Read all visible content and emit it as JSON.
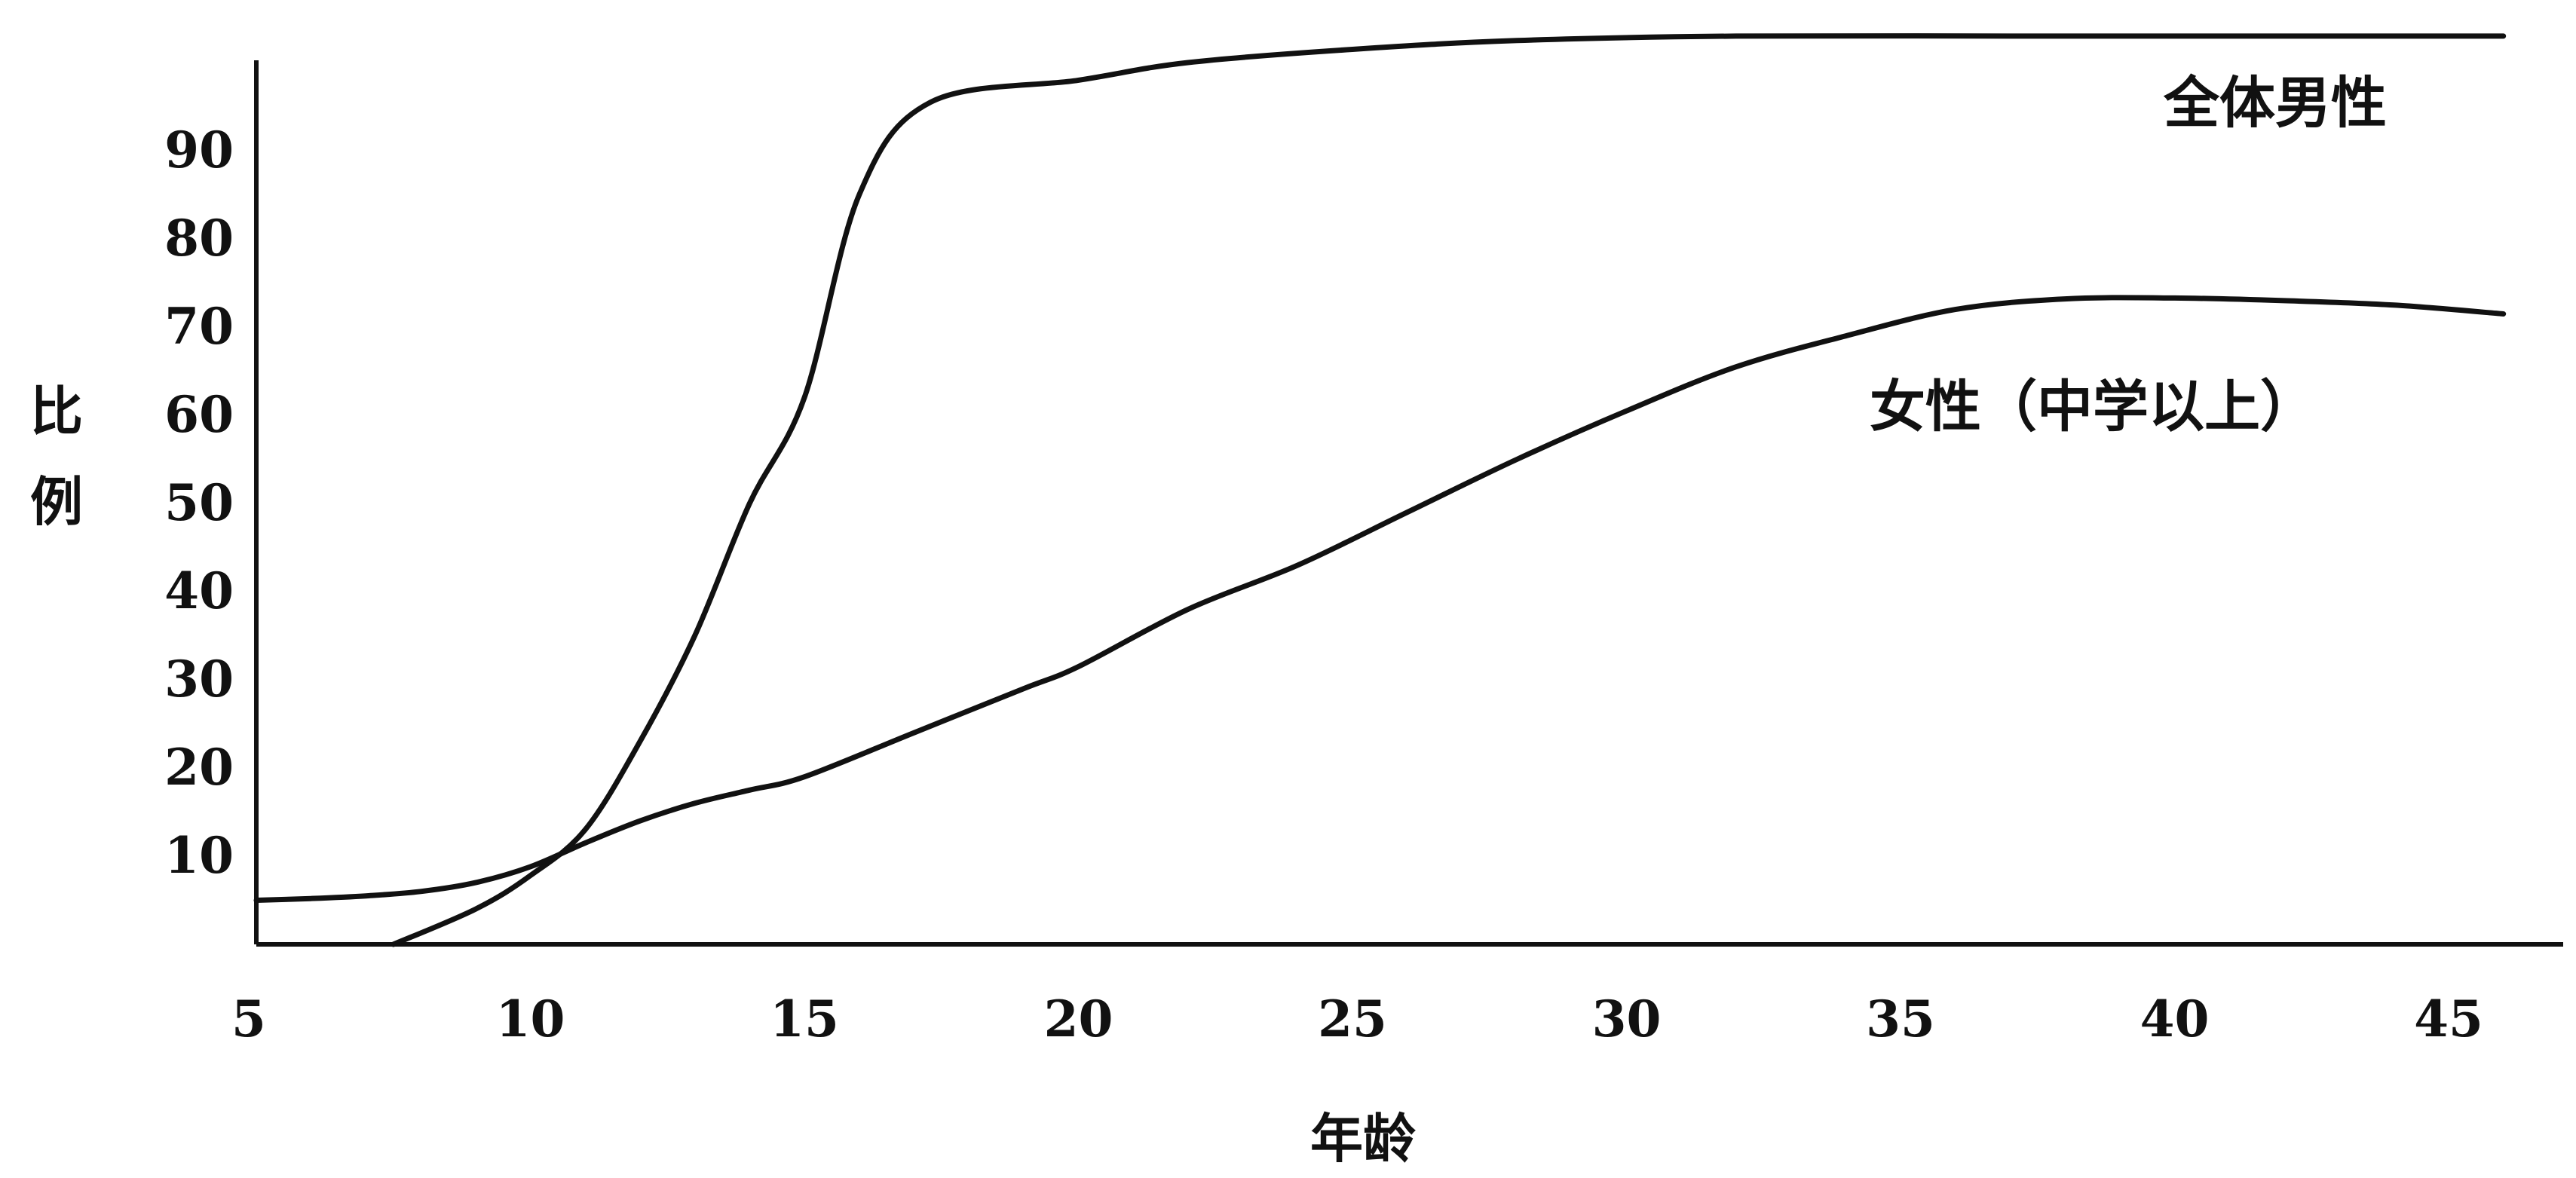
{
  "chart_data": {
    "type": "line",
    "title": "",
    "xlabel": "年龄",
    "ylabel": "比例",
    "xlim": [
      5,
      46
    ],
    "ylim": [
      0,
      100
    ],
    "x_ticks": [
      5,
      10,
      15,
      20,
      25,
      30,
      35,
      40,
      45
    ],
    "y_ticks": [
      10,
      20,
      30,
      40,
      50,
      60,
      70,
      80,
      90
    ],
    "grid": false,
    "legend": "none",
    "series": [
      {
        "name": "全体男性",
        "label_position": "top-right",
        "points": [
          [
            7.5,
            0
          ],
          [
            9,
            4
          ],
          [
            10,
            7.8
          ],
          [
            11,
            13
          ],
          [
            12,
            23
          ],
          [
            13,
            35
          ],
          [
            14,
            50
          ],
          [
            15,
            62
          ],
          [
            16,
            85
          ],
          [
            17.3,
            95.5
          ],
          [
            20,
            98
          ],
          [
            22,
            100
          ],
          [
            25,
            101.5
          ],
          [
            28,
            102.5
          ],
          [
            32,
            103
          ],
          [
            37,
            103
          ],
          [
            42,
            103
          ],
          [
            46,
            103
          ]
        ]
      },
      {
        "name": "女性（中学以上）",
        "label_position": "center-right",
        "points": [
          [
            5,
            5
          ],
          [
            6,
            5.2
          ],
          [
            7,
            5.5
          ],
          [
            8,
            6
          ],
          [
            9,
            7
          ],
          [
            10,
            8.8
          ],
          [
            11,
            11.5
          ],
          [
            12,
            14
          ],
          [
            13,
            16
          ],
          [
            14,
            17.5
          ],
          [
            15,
            19
          ],
          [
            17,
            24
          ],
          [
            19,
            29
          ],
          [
            20,
            31.5
          ],
          [
            22,
            38
          ],
          [
            24,
            43
          ],
          [
            26,
            49
          ],
          [
            28,
            55
          ],
          [
            30,
            60.5
          ],
          [
            32,
            65.5
          ],
          [
            34,
            69
          ],
          [
            36,
            72
          ],
          [
            38,
            73.2
          ],
          [
            40,
            73.3
          ],
          [
            42,
            73
          ],
          [
            44,
            72.5
          ],
          [
            46,
            71.5
          ]
        ]
      }
    ]
  }
}
